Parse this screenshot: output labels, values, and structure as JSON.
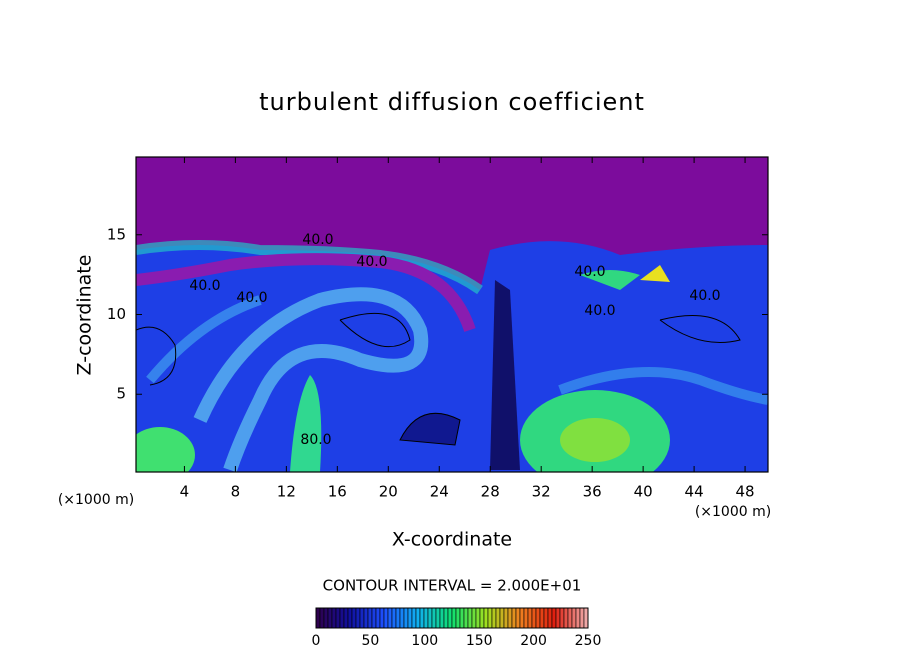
{
  "chart_data": {
    "type": "contour",
    "title": "turbulent diffusion coefficient",
    "x_label": "X-coordinate",
    "y_label": "Z-coordinate",
    "x_unit_label": "(×1000 m)",
    "y_unit_label": "(×1000 m)",
    "xlim": [
      0.2,
      49.8
    ],
    "ylim": [
      0.125,
      19.875
    ],
    "xticks": [
      4,
      8,
      12,
      16,
      20,
      24,
      28,
      32,
      36,
      40,
      44,
      48
    ],
    "yticks": [
      5,
      10,
      15
    ],
    "contour_interval": "CONTOUR INTERVAL = 2.000E+01",
    "contour_labels": [
      {
        "value": 40,
        "label": "40.0"
      },
      {
        "value": 40,
        "label": "40.0"
      },
      {
        "value": 40,
        "label": "40.0"
      },
      {
        "value": 40,
        "label": "40.0"
      },
      {
        "value": 40,
        "label": "40.0"
      },
      {
        "value": 40,
        "label": "40.0"
      },
      {
        "value": 40,
        "label": "40.0"
      },
      {
        "value": 80,
        "label": "80.0"
      }
    ],
    "clim": [
      0,
      250
    ],
    "cticks": [
      0,
      50,
      100,
      150,
      200,
      250
    ],
    "colormap": [
      "#30004a",
      "#1010a0",
      "#1e50ff",
      "#10b0f0",
      "#10e070",
      "#a0e020",
      "#f08020",
      "#e02010",
      "#f0b0b0"
    ]
  }
}
